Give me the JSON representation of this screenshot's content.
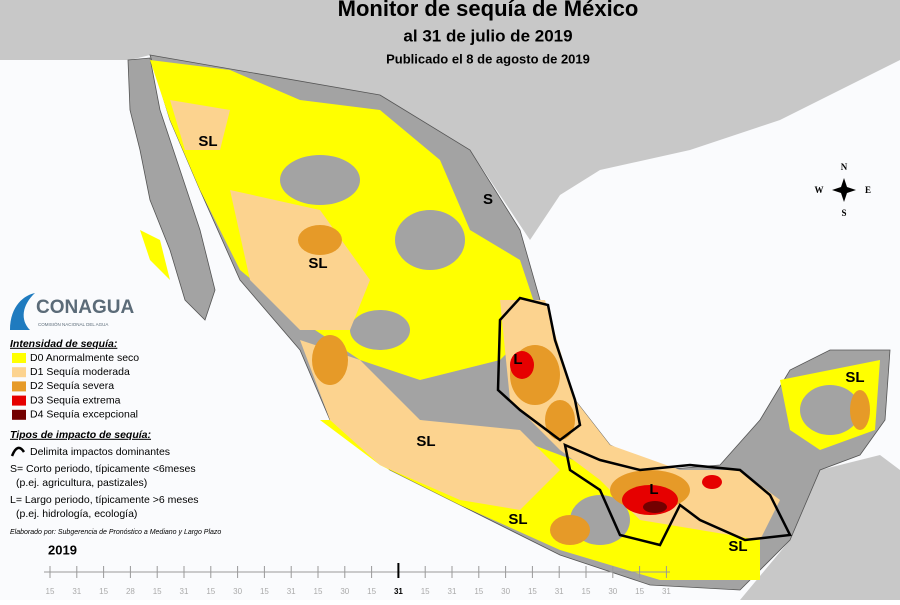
{
  "header": {
    "title": "Monitor de sequía de México",
    "subtitle": "al 31 de julio de 2019",
    "published": "Publicado el 8 de agosto de 2019"
  },
  "logo": {
    "name": "CONAGUA",
    "subtitle": "COMISIÓN NACIONAL DEL AGUA"
  },
  "legend": {
    "intensity_title": "Intensidad de sequía:",
    "items": [
      {
        "label": "D0 Anormalmente seco",
        "color": "#ffff00"
      },
      {
        "label": "D1 Sequía moderada",
        "color": "#fcd38f"
      },
      {
        "label": "D2 Sequía severa",
        "color": "#e69a28"
      },
      {
        "label": "D3 Sequía extrema",
        "color": "#e60000"
      },
      {
        "label": "D4 Sequía excepcional",
        "color": "#730000"
      }
    ],
    "impact_title": "Tipos de impacto de sequía:",
    "impact_line": "Delimita impactos dominantes",
    "notes": [
      "S= Corto periodo, típicamente <6meses",
      "(p.ej. agricultura, pastizales)",
      "L= Largo periodo, típicamente >6 meses",
      "(p.ej. hidrología, ecología)"
    ],
    "credit": "Elaborado por: Subgerencia de Pronóstico a Mediano y Largo Plazo"
  },
  "compass": {
    "n": "N",
    "s": "S",
    "e": "E",
    "w": "W"
  },
  "map_labels": [
    "SL",
    "SL",
    "S",
    "L",
    "SL",
    "SL",
    "L",
    "SL",
    "SL"
  ],
  "timeline": {
    "year": "2019",
    "ticks": [
      "15",
      "31",
      "15",
      "28",
      "15",
      "31",
      "15",
      "30",
      "15",
      "31",
      "15",
      "30",
      "15",
      "31",
      "15",
      "31",
      "15",
      "30",
      "15",
      "31",
      "15",
      "30",
      "15",
      "31"
    ],
    "current": 13
  }
}
